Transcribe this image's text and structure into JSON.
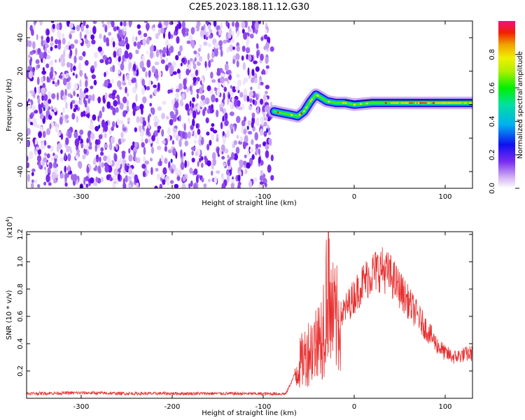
{
  "figure_title": "C2E5.2023.188.11.12.G30",
  "chart_data": [
    {
      "type": "heatmap",
      "xlabel": "Height of straight line (km)",
      "ylabel": "Frequency (Hz)",
      "xlim": [
        -360,
        130
      ],
      "ylim": [
        -50,
        50
      ],
      "x_ticks": [
        -300,
        -200,
        -100,
        0,
        100
      ],
      "x_tick_labels": [
        "-300",
        "-200",
        "-100",
        "0",
        "100"
      ],
      "y_ticks": [
        -40,
        -20,
        0,
        20,
        40
      ],
      "y_tick_labels": [
        "-40",
        "-20",
        "0",
        "20",
        "40"
      ],
      "noise_region_x": [
        -360,
        -90
      ],
      "signal_line": {
        "x": [
          -88,
          -80,
          -70,
          -62,
          -55,
          -48,
          -42,
          -36,
          -30,
          -20,
          -10,
          0,
          20,
          40,
          60,
          80,
          100,
          130
        ],
        "y": [
          -4,
          -5,
          -6,
          -7,
          -4,
          2,
          6,
          4,
          2,
          1,
          1,
          0,
          1,
          1,
          1,
          1,
          1,
          1
        ]
      },
      "colorbar": {
        "label": "Normalized spectral amplitude",
        "range": [
          0,
          1
        ],
        "ticks": [
          0,
          0.2,
          0.4,
          0.6,
          0.8
        ],
        "tick_labels": [
          "0.0",
          "0.2",
          "0.4",
          "0.6",
          "0.8"
        ]
      }
    },
    {
      "type": "line",
      "xlabel": "Height of straight line (km)",
      "ylabel": "SNR (10 * v/v)",
      "exponent_label": "(x10",
      "exponent_power": "4",
      "exponent_close": ")",
      "xlim": [
        -360,
        130
      ],
      "ylim": [
        0,
        12200
      ],
      "x_ticks": [
        -300,
        -200,
        -100,
        0,
        100
      ],
      "x_tick_labels": [
        "-300",
        "-200",
        "-100",
        "0",
        "100"
      ],
      "y_ticks": [
        2000,
        4000,
        6000,
        8000,
        10000,
        12000
      ],
      "y_tick_labels": [
        "0.2",
        "0.4",
        "0.6",
        "0.8",
        "1.0",
        "1.2"
      ],
      "series": [
        {
          "name": "SNR",
          "color": "#e83030",
          "x": [
            -360,
            -300,
            -250,
            -200,
            -150,
            -100,
            -75,
            -65,
            -60,
            -55,
            -50,
            -45,
            -40,
            -35,
            -30,
            -28,
            -25,
            -20,
            -15,
            -10,
            -5,
            0,
            10,
            20,
            30,
            40,
            50,
            60,
            70,
            80,
            90,
            100,
            110,
            120,
            130
          ],
          "values": [
            350,
            400,
            350,
            350,
            350,
            330,
            330,
            1800,
            2500,
            3000,
            3500,
            3800,
            4200,
            5000,
            8000,
            11000,
            6000,
            5500,
            6000,
            6500,
            7000,
            7500,
            8500,
            9200,
            9500,
            9000,
            8000,
            7000,
            6000,
            5000,
            4000,
            3300,
            3000,
            3200,
            3300
          ]
        }
      ]
    }
  ]
}
